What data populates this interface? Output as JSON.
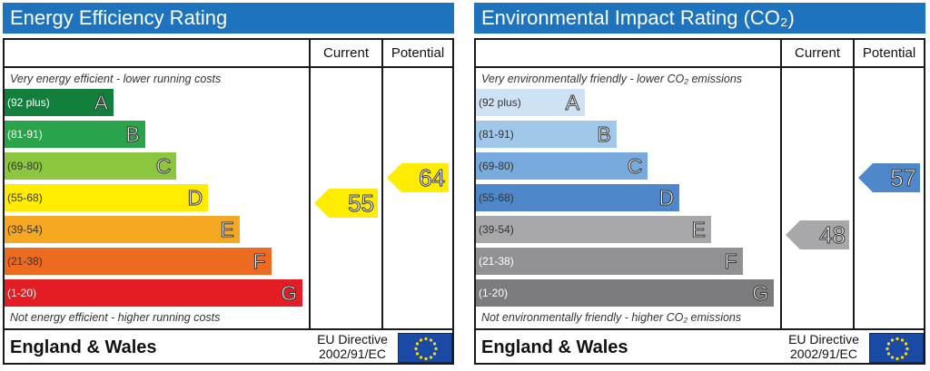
{
  "colors": {
    "header_bg": "#1e73be",
    "energy_bands": [
      "#137f3c",
      "#2aa34a",
      "#8cc63f",
      "#ffec00",
      "#f7a823",
      "#ed6b21",
      "#e31d23"
    ],
    "env_bands": [
      "#cde3f5",
      "#a1c7ea",
      "#78aadd",
      "#4e88cb",
      "#a8a8aa",
      "#919193",
      "#7c7c7e"
    ],
    "energy_marker_current": "#ffec00",
    "energy_marker_potential": "#ffec00",
    "env_marker_current": "#a8a8aa",
    "env_marker_potential": "#4e88cb",
    "flag_stars": "#ffdd00"
  },
  "energy": {
    "title": "Energy Efficiency Rating",
    "current_label": "Current",
    "potential_label": "Potential",
    "top_caption": "Very energy efficient - lower running costs",
    "bottom_caption": "Not energy efficient - higher running costs",
    "country": "England & Wales",
    "directive_line1": "EU Directive",
    "directive_line2": "2002/91/EC"
  },
  "environmental": {
    "title": "Environmental Impact Rating (CO₂)",
    "current_label": "Current",
    "potential_label": "Potential",
    "top_caption": "Very environmentally friendly - lower CO₂ emissions",
    "bottom_caption": "Not environmentally friendly - higher CO₂ emissions",
    "country": "England & Wales",
    "directive_line1": "EU Directive",
    "directive_line2": "2002/91/EC"
  },
  "chart_data": [
    {
      "type": "bar",
      "title": "Energy Efficiency Rating",
      "categories": [
        "A",
        "B",
        "C",
        "D",
        "E",
        "F",
        "G"
      ],
      "ranges": [
        "(92 plus)",
        "(81-91)",
        "(69-80)",
        "(55-68)",
        "(39-54)",
        "(21-38)",
        "(1-20)"
      ],
      "current": 55,
      "potential": 64
    },
    {
      "type": "bar",
      "title": "Environmental Impact Rating (CO₂)",
      "categories": [
        "A",
        "B",
        "C",
        "D",
        "E",
        "F",
        "G"
      ],
      "ranges": [
        "(92 plus)",
        "(81-91)",
        "(69-80)",
        "(55-68)",
        "(39-54)",
        "(21-38)",
        "(1-20)"
      ],
      "current": 48,
      "potential": 57
    }
  ]
}
